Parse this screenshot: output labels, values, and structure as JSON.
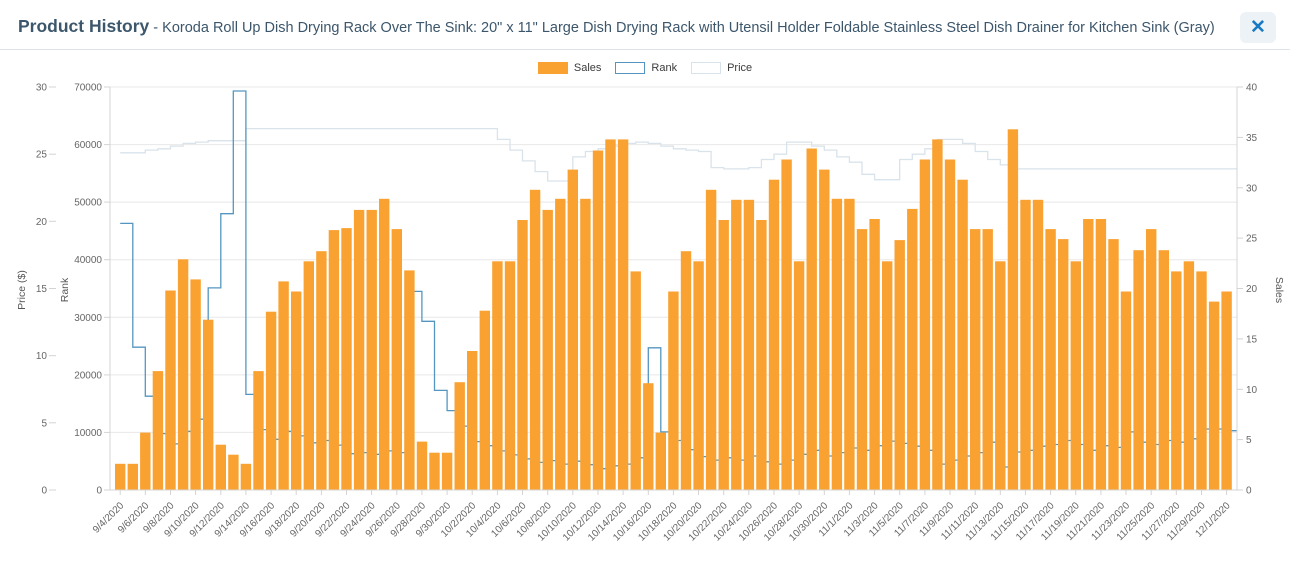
{
  "header": {
    "title": "Product History",
    "separator": " - ",
    "subtitle": "Koroda Roll Up Dish Drying Rack Over The Sink: 20\" x 11\" Large Dish Drying Rack with Utensil Holder Foldable Stainless Steel Dish Drainer for Kitchen Sink (Gray)",
    "close_glyph": "✕"
  },
  "colors": {
    "sales_bar": "#F9A231",
    "rank_line": "#5596C0",
    "price_line": "#D9E3EC",
    "grid": "#E8E8E8",
    "axis_line": "#D4D4D4",
    "title_text": "#3C566B",
    "close_icon": "#177AC2"
  },
  "chart_data": {
    "type": "bar",
    "title": "",
    "legend_position": "top-center",
    "grid": true,
    "categories": [
      "9/4/2020",
      "9/5/2020",
      "9/6/2020",
      "9/7/2020",
      "9/8/2020",
      "9/9/2020",
      "9/10/2020",
      "9/11/2020",
      "9/12/2020",
      "9/13/2020",
      "9/14/2020",
      "9/15/2020",
      "9/16/2020",
      "9/17/2020",
      "9/18/2020",
      "9/19/2020",
      "9/20/2020",
      "9/21/2020",
      "9/22/2020",
      "9/23/2020",
      "9/24/2020",
      "9/25/2020",
      "9/26/2020",
      "9/27/2020",
      "9/28/2020",
      "9/29/2020",
      "9/30/2020",
      "10/1/2020",
      "10/2/2020",
      "10/3/2020",
      "10/4/2020",
      "10/5/2020",
      "10/6/2020",
      "10/7/2020",
      "10/8/2020",
      "10/9/2020",
      "10/10/2020",
      "10/11/2020",
      "10/12/2020",
      "10/13/2020",
      "10/14/2020",
      "10/15/2020",
      "10/16/2020",
      "10/17/2020",
      "10/18/2020",
      "10/19/2020",
      "10/20/2020",
      "10/21/2020",
      "10/22/2020",
      "10/23/2020",
      "10/24/2020",
      "10/25/2020",
      "10/26/2020",
      "10/27/2020",
      "10/28/2020",
      "10/29/2020",
      "10/30/2020",
      "10/31/2020",
      "11/1/2020",
      "11/2/2020",
      "11/3/2020",
      "11/4/2020",
      "11/5/2020",
      "11/6/2020",
      "11/7/2020",
      "11/8/2020",
      "11/9/2020",
      "11/10/2020",
      "11/11/2020",
      "11/12/2020",
      "11/13/2020",
      "11/14/2020",
      "11/15/2020",
      "11/16/2020",
      "11/17/2020",
      "11/18/2020",
      "11/19/2020",
      "11/20/2020",
      "11/21/2020",
      "11/22/2020",
      "11/23/2020",
      "11/24/2020",
      "11/25/2020",
      "11/26/2020",
      "11/27/2020",
      "11/28/2020",
      "11/29/2020",
      "11/30/2020",
      "12/1/2020"
    ],
    "series": [
      {
        "name": "Sales",
        "type": "bar",
        "axis": "sales",
        "color": "#F9A231",
        "values": [
          2.6,
          2.6,
          5.7,
          11.8,
          19.8,
          22.9,
          20.9,
          16.9,
          4.5,
          3.5,
          2.6,
          11.8,
          17.7,
          20.7,
          19.7,
          22.7,
          23.7,
          25.8,
          26,
          27.8,
          27.8,
          28.9,
          25.9,
          21.8,
          4.8,
          3.7,
          3.7,
          10.7,
          13.8,
          17.8,
          22.7,
          22.7,
          26.8,
          29.8,
          27.8,
          28.9,
          31.8,
          28.9,
          33.7,
          34.8,
          34.8,
          21.7,
          10.6,
          5.7,
          19.7,
          23.7,
          22.7,
          29.8,
          26.8,
          28.8,
          28.8,
          26.8,
          30.8,
          32.8,
          22.7,
          33.9,
          31.8,
          28.9,
          28.9,
          25.9,
          26.9,
          22.7,
          24.8,
          27.9,
          32.8,
          34.8,
          32.8,
          30.8,
          25.9,
          25.9,
          22.7,
          35.8,
          28.8,
          28.8,
          25.9,
          24.9,
          22.7,
          26.9,
          26.9,
          24.9,
          19.7,
          23.8,
          25.9,
          23.8,
          21.7,
          22.7,
          21.7,
          18.7,
          19.7
        ]
      },
      {
        "name": "Rank",
        "type": "step-line",
        "axis": "rank",
        "color": "#5596C0",
        "values": [
          46300,
          24800,
          16300,
          9800,
          8000,
          10200,
          12300,
          35100,
          48000,
          69300,
          16600,
          10500,
          8800,
          10200,
          9400,
          8200,
          8600,
          7800,
          6300,
          6500,
          6200,
          6800,
          6500,
          34500,
          29300,
          17300,
          13800,
          11100,
          8400,
          7700,
          6800,
          6100,
          5400,
          4800,
          5100,
          4500,
          5000,
          4400,
          3700,
          4200,
          4500,
          5600,
          24700,
          10100,
          8600,
          7000,
          5800,
          5200,
          5600,
          5200,
          5900,
          4900,
          4500,
          5200,
          6200,
          6900,
          5900,
          6500,
          7300,
          6900,
          7700,
          8500,
          8100,
          7600,
          6900,
          4500,
          5200,
          5900,
          6500,
          8300,
          4000,
          6600,
          6900,
          7600,
          7900,
          8600,
          7900,
          6900,
          7700,
          7400,
          10100,
          8300,
          7900,
          8600,
          8300,
          8900,
          10600,
          10600,
          10300
        ]
      },
      {
        "name": "Price",
        "type": "step-line",
        "axis": "price",
        "color": "#D9E3EC",
        "values": [
          25.1,
          25.1,
          25.3,
          25.4,
          25.6,
          25.8,
          25.9,
          26,
          26,
          26,
          26.9,
          26.9,
          26.9,
          26.9,
          26.9,
          26.9,
          26.9,
          26.9,
          26.9,
          26.9,
          26.9,
          26.9,
          26.9,
          26.9,
          26.9,
          26.9,
          26.9,
          26.9,
          26.9,
          26.9,
          26.1,
          25.3,
          24.5,
          23.7,
          23,
          23,
          24.8,
          25.2,
          25.4,
          25.6,
          25.8,
          25.9,
          25.8,
          25.6,
          25.4,
          25.3,
          25.2,
          24,
          23.9,
          23.9,
          24,
          24.6,
          25,
          25.9,
          25.9,
          25.6,
          25.3,
          24.8,
          24.4,
          23.5,
          23.1,
          23.1,
          24.6,
          25,
          25.4,
          26.1,
          26.1,
          25.8,
          25.2,
          24.6,
          24.2,
          23.9,
          23.9,
          23.9,
          23.9,
          23.9,
          23.9,
          23.9,
          23.9,
          23.9,
          23.9,
          23.9,
          23.9,
          23.9,
          23.9,
          23.9,
          23.9,
          23.9,
          23.9
        ]
      }
    ],
    "axes": {
      "price": {
        "label": "Price ($)",
        "min": 0,
        "max": 30,
        "ticks": [
          0,
          5,
          10,
          15,
          20,
          25,
          30
        ],
        "side": "left-outer"
      },
      "rank": {
        "label": "Rank",
        "min": 0,
        "max": 70000,
        "ticks": [
          0,
          10000,
          20000,
          30000,
          40000,
          50000,
          60000,
          70000
        ],
        "side": "left-inner"
      },
      "sales": {
        "label": "Sales",
        "min": 0,
        "max": 40,
        "ticks": [
          0,
          5,
          10,
          15,
          20,
          25,
          30,
          35,
          40
        ],
        "side": "right"
      },
      "x_label_every": 2
    }
  }
}
